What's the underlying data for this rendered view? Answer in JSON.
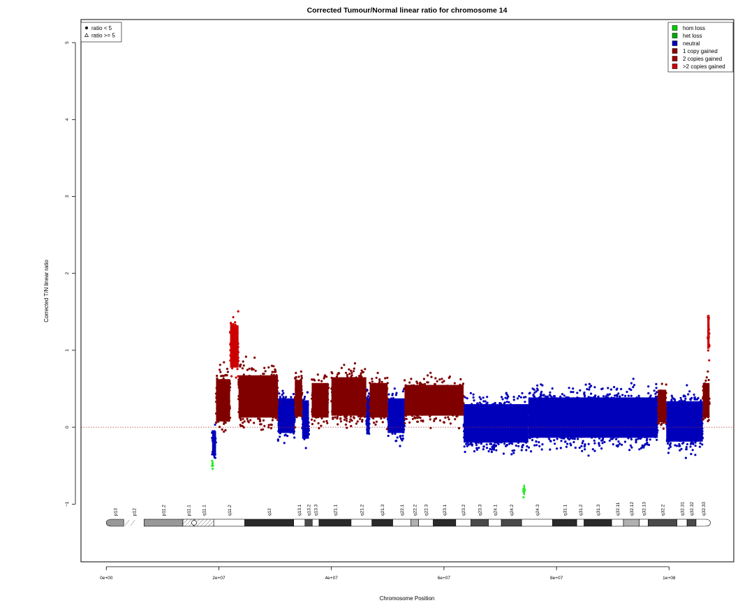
{
  "chart_data": {
    "type": "scatter",
    "title": "Corrected Tumour/Normal linear ratio for chromosome  14",
    "xlabel": "Chromosome Position",
    "ylabel": "Corrected T/N linear ratio",
    "xlim": [
      -4500000,
      111500000
    ],
    "ylim": [
      -1.75,
      5.3
    ],
    "x_ticks": [
      0,
      20000000,
      40000000,
      60000000,
      80000000,
      100000000
    ],
    "x_tick_labels": [
      "0e+00",
      "2e+07",
      "4e+07",
      "6e+07",
      "8e+07",
      "1e+08"
    ],
    "y_ticks": [
      -1,
      0,
      1,
      2,
      3,
      4,
      5
    ],
    "y_tick_labels": [
      "−1",
      "0",
      "1",
      "2",
      "3",
      "4",
      "5"
    ],
    "reference_line": 0,
    "shape_legend": {
      "position": "top-left",
      "items": [
        {
          "label": "ratio < 5",
          "symbol": "circle"
        },
        {
          "label": "ratio >= 5",
          "symbol": "triangle"
        }
      ]
    },
    "legend": {
      "position": "top-right",
      "items": [
        {
          "label": "hom loss",
          "color": "#00cc00"
        },
        {
          "label": "het loss",
          "color": "#00aa00"
        },
        {
          "label": "neutral",
          "color": "#0000bb"
        },
        {
          "label": "1 copy gained",
          "color": "#8b0000"
        },
        {
          "label": "2 copies gained",
          "color": "#a00000"
        },
        {
          "label": ">2 copies gained",
          "color": "#cc0000"
        }
      ]
    },
    "colors": {
      "neutral": "#0000bb",
      "gain": "#800000",
      "high_gain": "#cc0000",
      "loss": "#22ee22",
      "reference": "#b03030"
    },
    "series": [
      {
        "label": "neutral",
        "color": "#0000bb",
        "regions": [
          {
            "x": [
              18800000,
              19500000
            ],
            "y_range": [
              -0.5,
              0.1
            ]
          },
          {
            "x": [
              30500000,
              33500000
            ],
            "y_range": [
              -0.3,
              0.6
            ]
          },
          {
            "x": [
              34800000,
              36000000
            ],
            "y_range": [
              -0.4,
              0.6
            ]
          },
          {
            "x": [
              46200000,
              46800000
            ],
            "y_range": [
              -0.3,
              0.6
            ]
          },
          {
            "x": [
              50000000,
              53000000
            ],
            "y_range": [
              -0.3,
              0.6
            ]
          },
          {
            "x": [
              63500000,
              75000000
            ],
            "y_range": [
              -0.45,
              0.55
            ]
          },
          {
            "x": [
              75000000,
              98000000
            ],
            "y_range": [
              -0.4,
              0.65
            ]
          },
          {
            "x": [
              99500000,
              106000000
            ],
            "y_range": [
              -0.45,
              0.6
            ]
          }
        ]
      },
      {
        "label": "1 copy gained",
        "color": "#800000",
        "regions": [
          {
            "x": [
              19500000,
              22000000
            ],
            "y_range": [
              -0.2,
              0.9
            ]
          },
          {
            "x": [
              23500000,
              30500000
            ],
            "y_range": [
              -0.15,
              0.95
            ]
          },
          {
            "x": [
              33500000,
              34800000
            ],
            "y_range": [
              -0.1,
              0.85
            ]
          },
          {
            "x": [
              36500000,
              39500000
            ],
            "y_range": [
              -0.1,
              0.8
            ]
          },
          {
            "x": [
              40000000,
              46200000
            ],
            "y_range": [
              -0.1,
              0.9
            ]
          },
          {
            "x": [
              46800000,
              50000000
            ],
            "y_range": [
              -0.1,
              0.8
            ]
          },
          {
            "x": [
              53000000,
              63500000
            ],
            "y_range": [
              -0.05,
              0.75
            ]
          },
          {
            "x": [
              98000000,
              99500000
            ],
            "y_range": [
              -0.15,
              0.7
            ]
          },
          {
            "x": [
              106000000,
              107200000
            ],
            "y_range": [
              -0.1,
              0.8
            ]
          }
        ]
      },
      {
        "label": ">2 copies gained",
        "color": "#cc0000",
        "regions": [
          {
            "x": [
              22000000,
              23500000
            ],
            "y_range": [
              0.5,
              1.6
            ]
          },
          {
            "x": [
              106800000,
              107200000
            ],
            "y_range": [
              0.8,
              1.68
            ]
          }
        ]
      },
      {
        "label": "hom loss",
        "color": "#22ee22",
        "regions": [
          {
            "x": [
              18800000,
              19000000
            ],
            "y_range": [
              -0.55,
              -0.4
            ]
          },
          {
            "x": [
              74100000,
              74400000
            ],
            "y_range": [
              -0.95,
              -0.68
            ]
          }
        ]
      }
    ],
    "cytobands": [
      {
        "name": "p13",
        "start": 0,
        "end": 3100000,
        "stain": "gvar"
      },
      {
        "name": "p12",
        "start": 3100000,
        "end": 6700000,
        "stain": "stalk"
      },
      {
        "name": "p11.2",
        "start": 6700000,
        "end": 13600000,
        "stain": "gvar"
      },
      {
        "name": "p11.1",
        "start": 13600000,
        "end": 15600000,
        "stain": "acen"
      },
      {
        "name": "q11.1",
        "start": 15600000,
        "end": 19100000,
        "stain": "acen"
      },
      {
        "name": "q11.2",
        "start": 19100000,
        "end": 24600000,
        "stain": "gneg"
      },
      {
        "name": "q12",
        "start": 24600000,
        "end": 33300000,
        "stain": "gpos100"
      },
      {
        "name": "q13.1",
        "start": 33300000,
        "end": 35300000,
        "stain": "gneg"
      },
      {
        "name": "q13.2",
        "start": 35300000,
        "end": 36600000,
        "stain": "gpos50"
      },
      {
        "name": "q13.3",
        "start": 36600000,
        "end": 37800000,
        "stain": "gneg"
      },
      {
        "name": "q21.1",
        "start": 37800000,
        "end": 43500000,
        "stain": "gpos100"
      },
      {
        "name": "q21.2",
        "start": 43500000,
        "end": 47200000,
        "stain": "gneg"
      },
      {
        "name": "q21.3",
        "start": 47200000,
        "end": 50900000,
        "stain": "gpos100"
      },
      {
        "name": "q22.1",
        "start": 50900000,
        "end": 54100000,
        "stain": "gneg"
      },
      {
        "name": "q22.2",
        "start": 54100000,
        "end": 55500000,
        "stain": "gpos25"
      },
      {
        "name": "q22.3",
        "start": 55500000,
        "end": 58100000,
        "stain": "gneg"
      },
      {
        "name": "q23.1",
        "start": 58100000,
        "end": 62100000,
        "stain": "gpos75"
      },
      {
        "name": "q23.2",
        "start": 62100000,
        "end": 64800000,
        "stain": "gneg"
      },
      {
        "name": "q23.3",
        "start": 64800000,
        "end": 67900000,
        "stain": "gpos50"
      },
      {
        "name": "q24.1",
        "start": 67900000,
        "end": 70200000,
        "stain": "gneg"
      },
      {
        "name": "q24.2",
        "start": 70200000,
        "end": 73800000,
        "stain": "gpos50"
      },
      {
        "name": "q24.3",
        "start": 73800000,
        "end": 79300000,
        "stain": "gneg"
      },
      {
        "name": "q31.1",
        "start": 79300000,
        "end": 83600000,
        "stain": "gpos100"
      },
      {
        "name": "q31.2",
        "start": 83600000,
        "end": 84900000,
        "stain": "gneg"
      },
      {
        "name": "q31.3",
        "start": 84900000,
        "end": 89800000,
        "stain": "gpos100"
      },
      {
        "name": "q32.11",
        "start": 89800000,
        "end": 91900000,
        "stain": "gneg"
      },
      {
        "name": "q32.12",
        "start": 91900000,
        "end": 94700000,
        "stain": "gpos25"
      },
      {
        "name": "q32.13",
        "start": 94700000,
        "end": 96300000,
        "stain": "gneg"
      },
      {
        "name": "q32.2",
        "start": 96300000,
        "end": 101400000,
        "stain": "gpos50"
      },
      {
        "name": "q32.31",
        "start": 101400000,
        "end": 103200000,
        "stain": "gneg"
      },
      {
        "name": "q32.32",
        "start": 103200000,
        "end": 104800000,
        "stain": "gpos50"
      },
      {
        "name": "q32.33",
        "start": 104800000,
        "end": 107349540,
        "stain": "gneg"
      }
    ]
  }
}
